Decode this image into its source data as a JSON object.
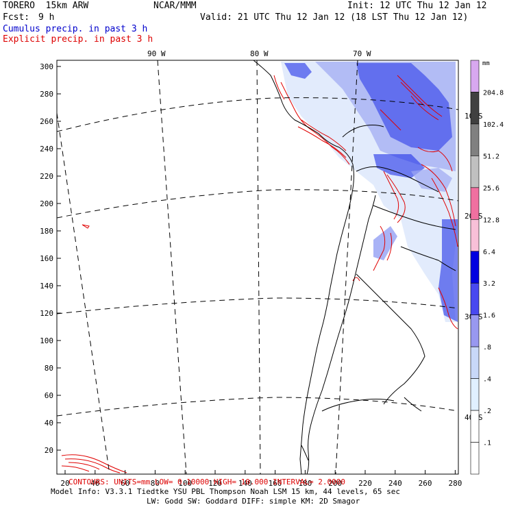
{
  "header": {
    "model": "TORERO  15km ARW",
    "org": "NCAR/MMM",
    "init": "Init: 12 UTC Thu 12 Jan 12",
    "fcst_label": "Fcst:",
    "fcst_value": "9 h",
    "valid": "Valid: 21 UTC Thu 12 Jan 12 (18 LST Thu 12 Jan 12)",
    "legend_cumulus": "Cumulus precip. in past 3 h",
    "legend_explicit": "Explicit precip. in past 3 h"
  },
  "map": {
    "lon_labels": [
      "90 W",
      "80 W",
      "70 W"
    ],
    "lat_labels": [
      "10 S",
      "20 S",
      "30 S",
      "40 S"
    ],
    "y_ticks": [
      "300",
      "280",
      "260",
      "240",
      "220",
      "200",
      "180",
      "160",
      "140",
      "120",
      "100",
      "80",
      "60",
      "40",
      "20"
    ],
    "x_ticks": [
      "20",
      "40",
      "60",
      "80",
      "100",
      "120",
      "140",
      "160",
      "180",
      "200",
      "220",
      "240",
      "260",
      "280"
    ]
  },
  "colorbar": {
    "unit": "mm",
    "labels": [
      "204.8",
      "102.4",
      "51.2",
      "25.6",
      "12.8",
      "6.4",
      "3.2",
      "1.6",
      ".8",
      ".4",
      ".2",
      ".1"
    ],
    "colors": [
      "#d8a8f0",
      "#404040",
      "#808080",
      "#c0c0c0",
      "#f070a0",
      "#f8c0d8",
      "#0000e0",
      "#4848f0",
      "#9898f0",
      "#c8d8f8",
      "#e0f0ff",
      "#ffffff",
      "#ffffff"
    ]
  },
  "footer": {
    "contours": "CONTOURS:  UNITS=mm     LOW= 0.10000     HIGH= 10.000     INTERVAL= 2.0000",
    "info1": "Model Info: V3.3.1   Tiedtke YSU PBL  Thompson     Noah LSM  15 km,    44 levels,   65 sec",
    "info2": "LW: Godd SW: Goddard DIFF: simple KM: 2D Smagor"
  }
}
